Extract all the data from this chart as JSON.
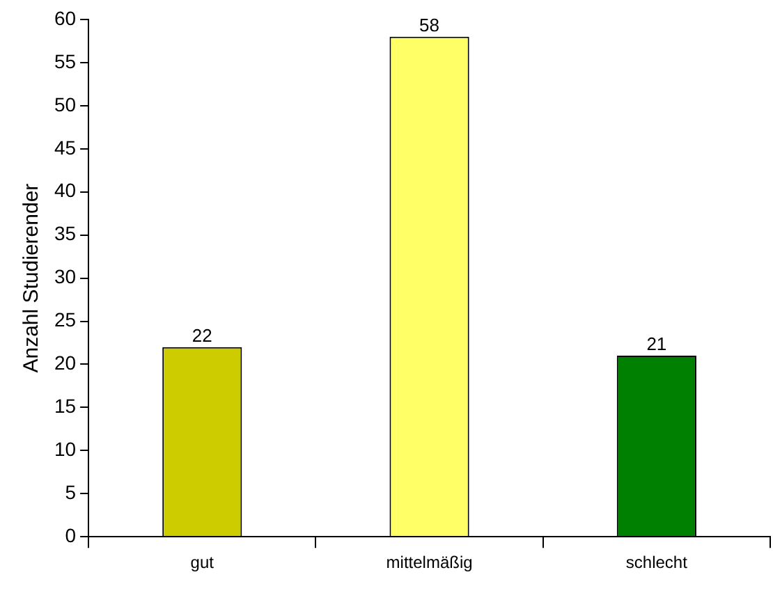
{
  "chart_data": {
    "type": "bar",
    "ylabel": "Anzahl Studierender",
    "categories": [
      "gut",
      "mittelmäßig",
      "schlecht"
    ],
    "values": [
      22,
      58,
      21
    ],
    "colors": [
      "#cccc00",
      "#ffff66",
      "#008000"
    ],
    "ylim": [
      0,
      60
    ],
    "yticks": [
      0,
      5,
      10,
      15,
      20,
      25,
      30,
      35,
      40,
      45,
      50,
      55,
      60
    ],
    "grid": false,
    "legend": false,
    "data_labels": true
  }
}
